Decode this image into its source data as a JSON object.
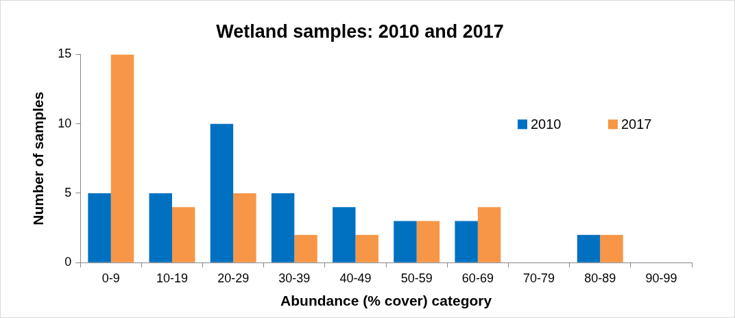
{
  "chart_data": {
    "type": "bar",
    "title": "Wetland samples: 2010 and 2017",
    "xlabel": "Abundance (% cover) category",
    "ylabel": "Number of samples",
    "categories": [
      "0-9",
      "10-19",
      "20-29",
      "30-39",
      "40-49",
      "50-59",
      "60-69",
      "70-79",
      "80-89",
      "90-99"
    ],
    "series": [
      {
        "name": "2010",
        "color": "#0070c0",
        "values": [
          5,
          5,
          10,
          5,
          4,
          3,
          3,
          0,
          2,
          0
        ]
      },
      {
        "name": "2017",
        "color": "#f79646",
        "values": [
          15,
          4,
          5,
          2,
          2,
          3,
          4,
          0,
          2,
          0
        ]
      }
    ],
    "ylim": [
      0,
      15
    ],
    "yticks": [
      0,
      5,
      10,
      15
    ],
    "grid": false,
    "legend": "top right"
  }
}
